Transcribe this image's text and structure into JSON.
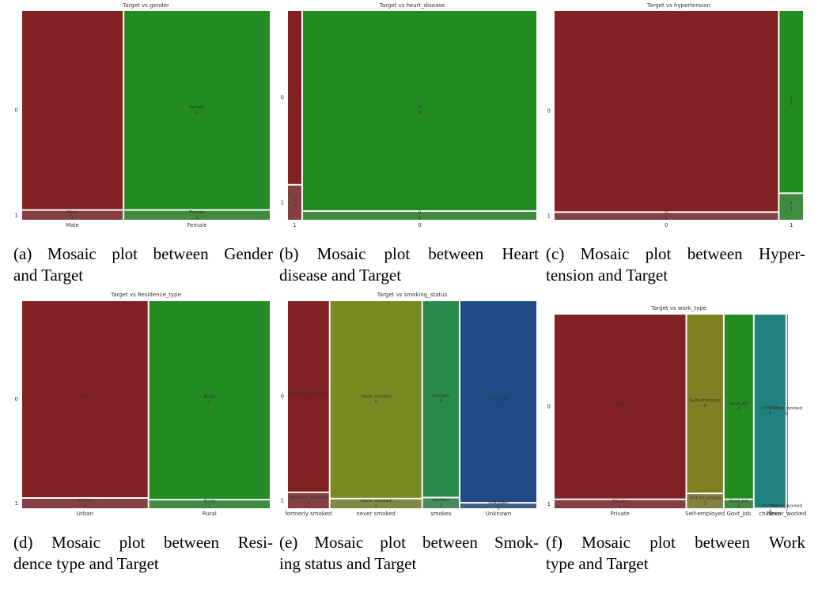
{
  "chart_data": [
    {
      "type": "mosaic",
      "title": "Target vs gender",
      "caption": [
        "(a) Mosaic plot between Gender",
        "and Target"
      ],
      "categories": [
        "Male",
        "Female"
      ],
      "shares": [
        0.41,
        0.59
      ],
      "colors": [
        "#822121",
        "#228b22"
      ],
      "series": [
        {
          "name": "0",
          "values": [
            0.95,
            0.95
          ]
        },
        {
          "name": "1",
          "values": [
            0.05,
            0.05
          ]
        }
      ]
    },
    {
      "type": "mosaic",
      "title": "Target vs heart_disease",
      "caption": [
        "(b) Mosaic plot between Heart",
        "disease and Target"
      ],
      "categories": [
        "1",
        "0"
      ],
      "shares": [
        0.06,
        0.94
      ],
      "colors": [
        "#822121",
        "#228b22"
      ],
      "series": [
        {
          "name": "0",
          "values": [
            0.83,
            0.955
          ]
        },
        {
          "name": "1",
          "values": [
            0.17,
            0.045
          ]
        }
      ]
    },
    {
      "type": "mosaic",
      "title": "Target vs hypertension",
      "caption": [
        "(c) Mosaic plot between Hyper-",
        "tension and Target"
      ],
      "categories": [
        "0",
        "1"
      ],
      "shares": [
        0.9,
        0.1
      ],
      "colors": [
        "#822121",
        "#228b22"
      ],
      "series": [
        {
          "name": "0",
          "values": [
            0.96,
            0.87
          ]
        },
        {
          "name": "1",
          "values": [
            0.04,
            0.13
          ]
        }
      ]
    },
    {
      "type": "mosaic",
      "title": "Target vs Residence_type",
      "caption": [
        "(d) Mosaic plot between Resi-",
        "dence type and Target"
      ],
      "categories": [
        "Urban",
        "Rural"
      ],
      "shares": [
        0.51,
        0.49
      ],
      "colors": [
        "#822121",
        "#228b22"
      ],
      "series": [
        {
          "name": "0",
          "values": [
            0.947,
            0.955
          ]
        },
        {
          "name": "1",
          "values": [
            0.053,
            0.045
          ]
        }
      ]
    },
    {
      "type": "mosaic",
      "title": "Target vs smoking_status",
      "caption": [
        "(e) Mosaic plot between Smok-",
        "ing status and Target"
      ],
      "categories": [
        "formerly smoked",
        "never smoked",
        "smokes",
        "Unknown"
      ],
      "shares": [
        0.17,
        0.37,
        0.15,
        0.31
      ],
      "colors": [
        "#822121",
        "#7a8a22",
        "#2a8a4a",
        "#1f4a86"
      ],
      "series": [
        {
          "name": "0",
          "values": [
            0.92,
            0.95,
            0.945,
            0.97
          ]
        },
        {
          "name": "1",
          "values": [
            0.08,
            0.05,
            0.055,
            0.03
          ]
        }
      ]
    },
    {
      "type": "mosaic",
      "title": "Target vs work_type",
      "caption": [
        "(f) Mosaic plot between Work",
        "type and Target"
      ],
      "categories": [
        "Private",
        "Self-employed",
        "Govt_job",
        "children",
        "Never_worked"
      ],
      "shares": [
        0.53,
        0.15,
        0.12,
        0.13,
        0.004
      ],
      "colors": [
        "#822121",
        "#7f7f22",
        "#228b22",
        "#218080",
        "#1f2f8f"
      ],
      "series": [
        {
          "name": "0",
          "values": [
            0.95,
            0.92,
            0.95,
            0.997,
            1
          ]
        },
        {
          "name": "1",
          "values": [
            0.05,
            0.08,
            0.05,
            0.003,
            0
          ]
        }
      ]
    }
  ]
}
